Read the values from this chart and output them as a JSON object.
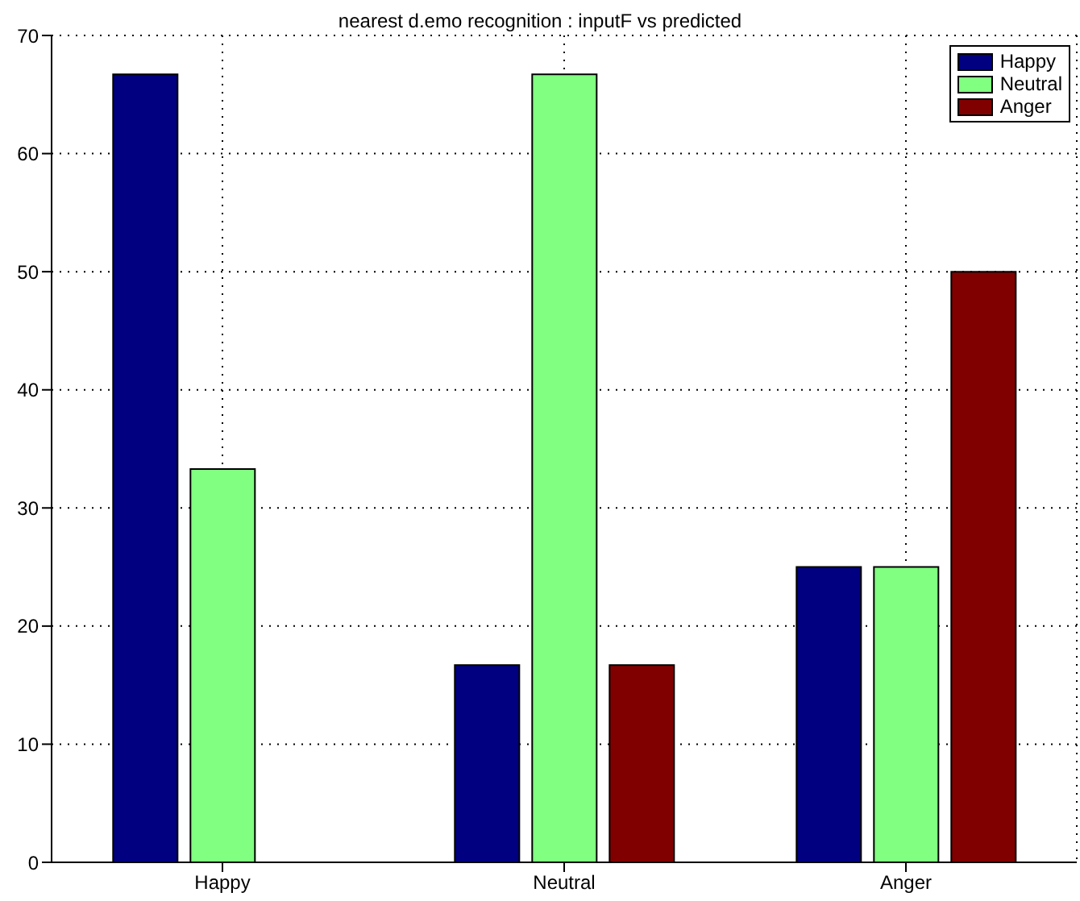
{
  "chart_data": {
    "type": "bar",
    "title": "nearest d.emo recognition : inputF vs predicted",
    "categories": [
      "Happy",
      "Neutral",
      "Anger"
    ],
    "series": [
      {
        "name": "Happy",
        "color": "#000080",
        "values": [
          66.7,
          16.7,
          25
        ]
      },
      {
        "name": "Neutral",
        "color": "#80ff80",
        "values": [
          33.3,
          66.7,
          25
        ]
      },
      {
        "name": "Anger",
        "color": "#800000",
        "values": [
          0,
          16.7,
          50
        ]
      }
    ],
    "ylim": [
      0,
      70
    ],
    "yticks": [
      0,
      10,
      20,
      30,
      40,
      50,
      60,
      70
    ],
    "grid": true,
    "legend": "top right"
  }
}
